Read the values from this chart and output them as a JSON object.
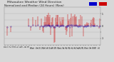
{
  "title_line1": "Milwaukee Weather Wind Direction",
  "title_line2": "Normalized and Median (24 Hours) (New)",
  "background_color": "#d8d8d8",
  "plot_bg_color": "#d8d8d8",
  "grid_color": "#bbbbbb",
  "bar_color": "#cc0000",
  "median_color": "#0000bb",
  "ylim": [
    -1.5,
    1.5
  ],
  "n_points": 144,
  "title_fontsize": 3.2,
  "tick_fontsize": 2.2,
  "legend_blue": "#0000cc",
  "legend_red": "#cc0000"
}
